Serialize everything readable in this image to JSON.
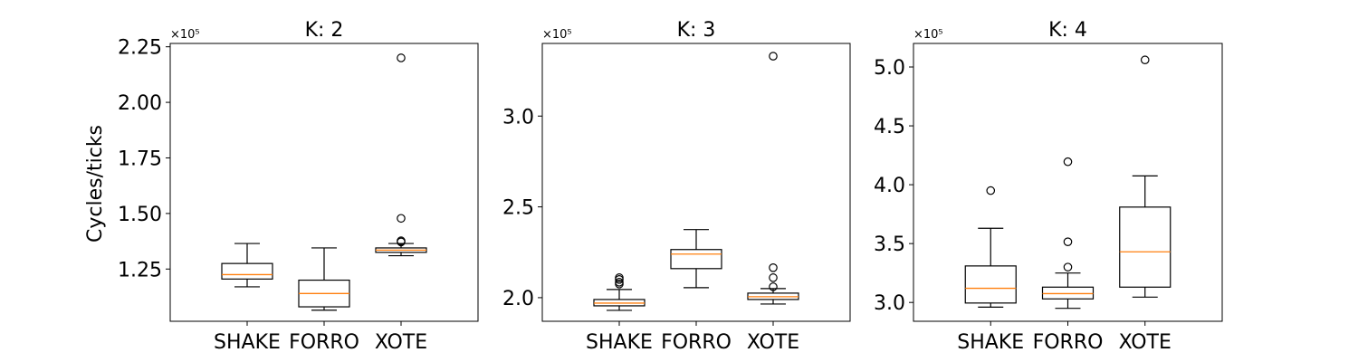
{
  "colors": {
    "box": "#000000",
    "median": "#ff7f0e",
    "flier": "#000000"
  },
  "chart_data": [
    {
      "type": "box",
      "title": "K: 2",
      "ylabel": "Cycles/ticks",
      "offset_text": "×10⁵",
      "ylim": [
        1.015,
        2.265
      ],
      "yticks": [
        {
          "value": 1.25,
          "label": "1.25"
        },
        {
          "value": 1.5,
          "label": "1.50"
        },
        {
          "value": 1.75,
          "label": "1.75"
        },
        {
          "value": 2.0,
          "label": "2.00"
        },
        {
          "value": 2.25,
          "label": "2.25"
        }
      ],
      "categories": [
        "SHAKE",
        "FORRO",
        "XOTE"
      ],
      "boxes": [
        {
          "whislo": 1.17,
          "q1": 1.205,
          "med": 1.225,
          "q3": 1.275,
          "whishi": 1.365,
          "fliers": []
        },
        {
          "whislo": 1.065,
          "q1": 1.08,
          "med": 1.14,
          "q3": 1.2,
          "whishi": 1.345,
          "fliers": []
        },
        {
          "whislo": 1.31,
          "q1": 1.325,
          "med": 1.335,
          "q3": 1.345,
          "whishi": 1.365,
          "fliers": [
            1.372,
            1.377,
            1.478,
            2.2
          ]
        }
      ]
    },
    {
      "type": "box",
      "title": "K: 3",
      "ylabel": "",
      "offset_text": "×10⁵",
      "ylim": [
        1.87,
        3.4
      ],
      "yticks": [
        {
          "value": 2.0,
          "label": "2.0"
        },
        {
          "value": 2.5,
          "label": "2.5"
        },
        {
          "value": 3.0,
          "label": "3.0"
        }
      ],
      "categories": [
        "SHAKE",
        "FORRO",
        "XOTE"
      ],
      "boxes": [
        {
          "whislo": 1.93,
          "q1": 1.955,
          "med": 1.97,
          "q3": 1.99,
          "whishi": 2.045,
          "fliers": [
            2.075,
            2.085,
            2.1,
            2.11
          ]
        },
        {
          "whislo": 2.055,
          "q1": 2.16,
          "med": 2.24,
          "q3": 2.265,
          "whishi": 2.375,
          "fliers": []
        },
        {
          "whislo": 1.965,
          "q1": 1.99,
          "med": 2.005,
          "q3": 2.025,
          "whishi": 2.05,
          "fliers": [
            2.06,
            2.11,
            2.165,
            3.33
          ]
        }
      ]
    },
    {
      "type": "box",
      "title": "K: 4",
      "ylabel": "",
      "offset_text": "×10⁵",
      "ylim": [
        2.84,
        5.2
      ],
      "yticks": [
        {
          "value": 3.0,
          "label": "3.0"
        },
        {
          "value": 3.5,
          "label": "3.5"
        },
        {
          "value": 4.0,
          "label": "4.0"
        },
        {
          "value": 4.5,
          "label": "4.5"
        },
        {
          "value": 5.0,
          "label": "5.0"
        }
      ],
      "categories": [
        "SHAKE",
        "FORRO",
        "XOTE"
      ],
      "boxes": [
        {
          "whislo": 2.96,
          "q1": 2.995,
          "med": 3.12,
          "q3": 3.31,
          "whishi": 3.63,
          "fliers": [
            3.95
          ]
        },
        {
          "whislo": 2.95,
          "q1": 3.03,
          "med": 3.075,
          "q3": 3.13,
          "whishi": 3.25,
          "fliers": [
            3.3,
            3.515,
            4.195
          ]
        },
        {
          "whislo": 3.045,
          "q1": 3.13,
          "med": 3.43,
          "q3": 3.81,
          "whishi": 4.075,
          "fliers": [
            5.06
          ]
        }
      ]
    }
  ]
}
